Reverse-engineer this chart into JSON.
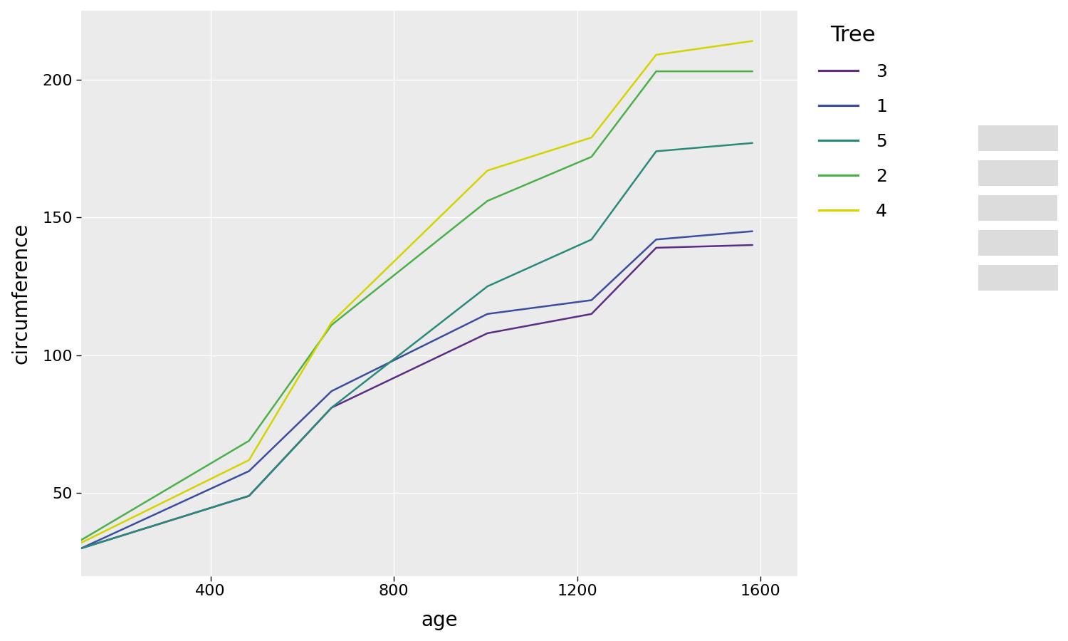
{
  "title": "",
  "xlabel": "age",
  "ylabel": "circumference",
  "plot_bg_color": "#EBEBEB",
  "fig_bg_color": "#FFFFFF",
  "legend_title": "Tree",
  "legend_item_bg": "#DCDCDC",
  "age": [
    118,
    484,
    664,
    1004,
    1231,
    1372,
    1582
  ],
  "trees": {
    "3": {
      "circumference": [
        30,
        49,
        81,
        108,
        115,
        139,
        140
      ],
      "color": "#5C2D82"
    },
    "1": {
      "circumference": [
        30,
        58,
        87,
        115,
        120,
        142,
        145
      ],
      "color": "#3B4E9E"
    },
    "5": {
      "circumference": [
        30,
        49,
        81,
        125,
        142,
        174,
        177
      ],
      "color": "#2A8A7A"
    },
    "2": {
      "circumference": [
        33,
        69,
        111,
        156,
        172,
        203,
        203
      ],
      "color": "#4DAF4A"
    },
    "4": {
      "circumference": [
        32,
        62,
        112,
        167,
        179,
        209,
        214
      ],
      "color": "#D4D400"
    }
  },
  "legend_order": [
    "3",
    "1",
    "5",
    "2",
    "4"
  ],
  "yticks": [
    50,
    100,
    150,
    200
  ],
  "xticks": [
    400,
    800,
    1200,
    1600
  ],
  "xlim": [
    118,
    1680
  ],
  "ylim": [
    20,
    225
  ],
  "linewidth": 1.8,
  "grid_color": "#FFFFFF",
  "axis_label_fontsize": 20,
  "tick_fontsize": 16,
  "legend_title_fontsize": 22,
  "legend_fontsize": 18
}
